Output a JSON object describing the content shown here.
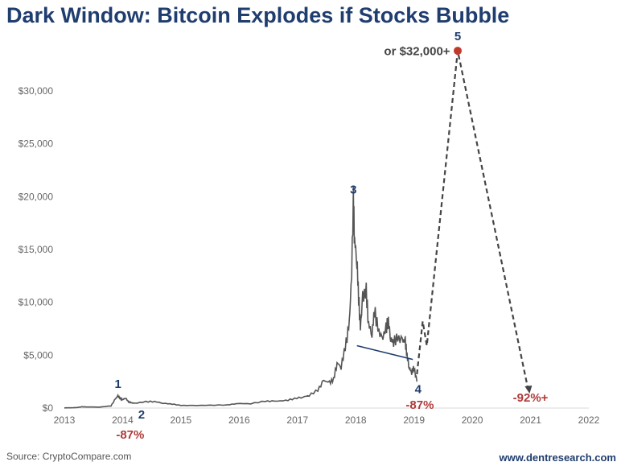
{
  "title": "Dark Window: Bitcoin Explodes if Stocks Bubble",
  "source": "Source: CryptoCompare.com",
  "website": "www.dentresearch.com",
  "chart_data": {
    "type": "line",
    "title": "Dark Window: Bitcoin Explodes if Stocks Bubble",
    "xlim": [
      2013,
      2022
    ],
    "ylim": [
      0,
      30000
    ],
    "x_ticks": [
      "2013",
      "2014",
      "2015",
      "2016",
      "2017",
      "2018",
      "2019",
      "2020",
      "2021",
      "2022"
    ],
    "y_ticks": [
      "$0",
      "$5,000",
      "$10,000",
      "$15,000",
      "$20,000",
      "$25,000",
      "$30,000"
    ],
    "y_tick_values": [
      0,
      5000,
      10000,
      15000,
      20000,
      25000,
      30000
    ],
    "grid": false,
    "colors": {
      "price": "#555555",
      "projection": "#444444",
      "trend": "#1f3d6e",
      "peak": "#c0392b",
      "label_blue": "#1f3d6e",
      "label_red": "#b03a3a"
    },
    "series": [
      {
        "style": "solid",
        "points": [
          [
            2013.0,
            13
          ],
          [
            2013.2,
            40
          ],
          [
            2013.3,
            120
          ],
          [
            2013.4,
            100
          ],
          [
            2013.6,
            90
          ],
          [
            2013.8,
            200
          ],
          [
            2013.88,
            900
          ],
          [
            2013.92,
            1150
          ],
          [
            2013.96,
            900
          ],
          [
            2014.0,
            800
          ],
          [
            2014.05,
            950
          ],
          [
            2014.1,
            600
          ],
          [
            2014.15,
            500
          ],
          [
            2014.2,
            450
          ],
          [
            2014.4,
            600
          ],
          [
            2014.55,
            620
          ],
          [
            2014.7,
            450
          ],
          [
            2014.85,
            380
          ],
          [
            2015.0,
            250
          ],
          [
            2015.2,
            240
          ],
          [
            2015.5,
            260
          ],
          [
            2015.8,
            300
          ],
          [
            2015.95,
            420
          ],
          [
            2016.2,
            420
          ],
          [
            2016.45,
            650
          ],
          [
            2016.6,
            650
          ],
          [
            2016.8,
            700
          ],
          [
            2016.95,
            900
          ],
          [
            2017.1,
            1050
          ],
          [
            2017.2,
            1200
          ],
          [
            2017.35,
            1700
          ],
          [
            2017.45,
            2600
          ],
          [
            2017.55,
            2400
          ],
          [
            2017.62,
            2700
          ],
          [
            2017.68,
            4300
          ],
          [
            2017.75,
            3900
          ],
          [
            2017.82,
            5800
          ],
          [
            2017.88,
            7500
          ],
          [
            2017.92,
            11000
          ],
          [
            2017.96,
            19500
          ],
          [
            2017.98,
            16000
          ],
          [
            2018.02,
            14000
          ],
          [
            2018.05,
            10500
          ],
          [
            2018.08,
            7500
          ],
          [
            2018.12,
            10500
          ],
          [
            2018.18,
            11000
          ],
          [
            2018.22,
            8000
          ],
          [
            2018.28,
            7000
          ],
          [
            2018.32,
            9300
          ],
          [
            2018.38,
            7500
          ],
          [
            2018.45,
            6500
          ],
          [
            2018.52,
            7500
          ],
          [
            2018.56,
            8300
          ],
          [
            2018.6,
            6500
          ],
          [
            2018.65,
            6300
          ],
          [
            2018.72,
            6600
          ],
          [
            2018.8,
            6400
          ],
          [
            2018.85,
            6300
          ],
          [
            2018.88,
            5000
          ],
          [
            2018.92,
            3800
          ],
          [
            2018.96,
            3400
          ],
          [
            2019.0,
            3800
          ],
          [
            2019.05,
            2500
          ]
        ]
      },
      {
        "style": "dashed",
        "points": [
          [
            2019.05,
            3200
          ],
          [
            2019.15,
            8200
          ],
          [
            2019.22,
            5900
          ],
          [
            2019.75,
            33800
          ],
          [
            2020.97,
            1450
          ]
        ]
      },
      {
        "style": "trendline",
        "points": [
          [
            2018.02,
            5900
          ],
          [
            2018.98,
            4600
          ]
        ]
      }
    ],
    "annotations": [
      {
        "text": "1",
        "x": 2013.92,
        "y": 1900,
        "color": "blue"
      },
      {
        "text": "2",
        "x": 2014.13,
        "y": -1000,
        "color": "blue"
      },
      {
        "text": "-87%",
        "x": 2014.13,
        "y": -2300,
        "color": "red"
      },
      {
        "text": "3",
        "x": 2017.96,
        "y": 20300,
        "color": "blue"
      },
      {
        "text": "4",
        "x": 2019.07,
        "y": 1100,
        "color": "blue"
      },
      {
        "text": "-87%",
        "x": 2019.1,
        "y": -300,
        "color": "red"
      },
      {
        "text": "5",
        "x": 2019.75,
        "y": 34800,
        "color": "blue"
      },
      {
        "text": "or $32,000+",
        "x": 2019.62,
        "y": 33400,
        "color": "gray"
      },
      {
        "text": "-92%+",
        "x": 2021.0,
        "y": 600,
        "color": "red"
      }
    ],
    "peak_marker": {
      "x": 2019.75,
      "y": 33800
    }
  }
}
